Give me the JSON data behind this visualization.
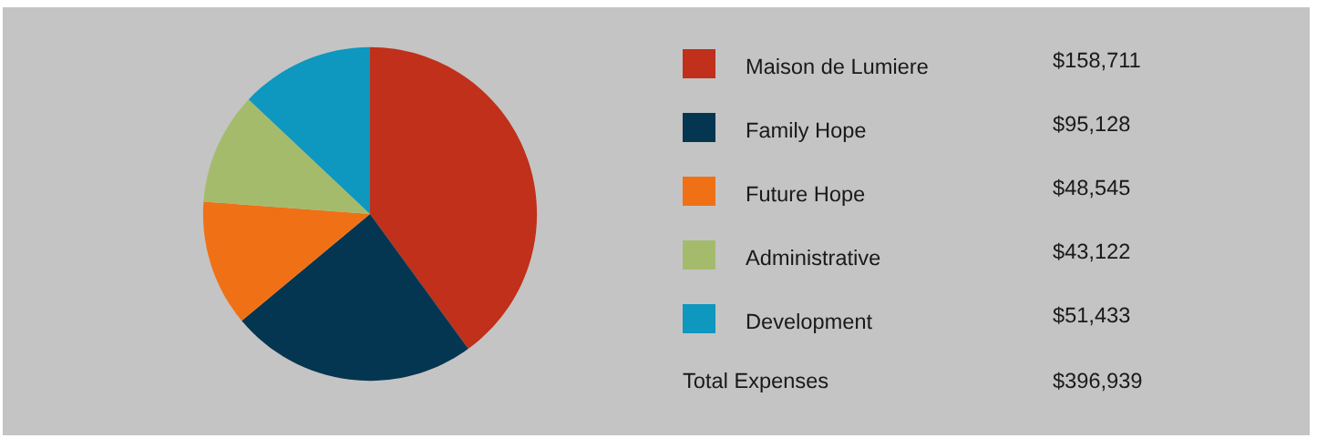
{
  "chart_data": {
    "type": "pie",
    "categories": [
      "Maison de Lumiere",
      "Family Hope",
      "Future Hope",
      "Administrative",
      "Development"
    ],
    "values": [
      158711,
      95128,
      48545,
      43122,
      51433
    ],
    "colors": [
      "#c0301a",
      "#053651",
      "#f07015",
      "#a5bb6c",
      "#0e97bf"
    ],
    "value_labels": [
      "$158,711",
      "$95,128",
      "$48,545",
      "$43,122",
      "$51,433"
    ],
    "annotations": [
      "Total Expenses",
      "$396,939"
    ],
    "legend": "right"
  }
}
